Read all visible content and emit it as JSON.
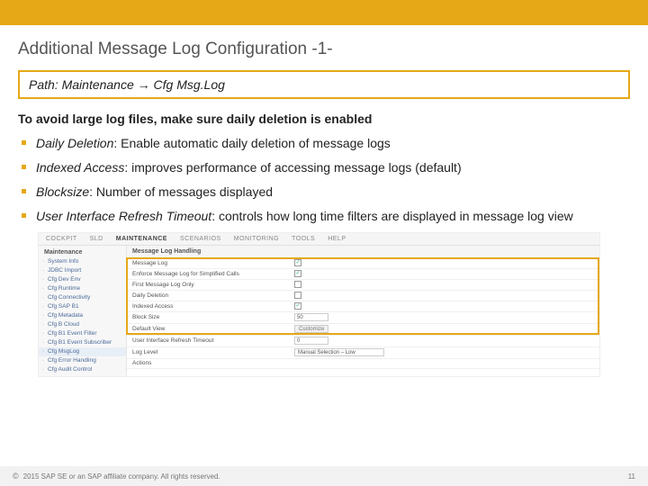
{
  "topbar_color": "#e6a817",
  "title": "Additional Message Log Configuration -1-",
  "path_box": {
    "label": "Path:",
    "value": "Maintenance → Cfg Msg.Log"
  },
  "intro": "To avoid large log files, make sure daily deletion is enabled",
  "bullets": [
    {
      "em": "Daily Deletion",
      "rest": ": Enable automatic daily deletion of message logs"
    },
    {
      "em": "Indexed Access",
      "rest": ": improves performance of accessing message logs (default)"
    },
    {
      "em": "Blocksize",
      "rest": ": Number of messages displayed"
    },
    {
      "em": "User Interface Refresh Timeout",
      "rest": ": controls how long time filters are displayed in message log view"
    }
  ],
  "screenshot": {
    "topnav": [
      "COCKPIT",
      "SLD",
      "MAINTENANCE",
      "SCENARIOS",
      "MONITORING",
      "TOOLS",
      "HELP"
    ],
    "topnav_active": "MAINTENANCE",
    "sidebar_header": "Maintenance",
    "sidebar_items": [
      "System Info",
      "JDBC Import",
      "Cfg Dev Env",
      "Cfg Runtime",
      "Cfg Connectivity",
      "Cfg SAP B1",
      "Cfg Metadata",
      "Cfg B Cloud",
      "Cfg B1 Event Filter",
      "Cfg B1 Event Subscriber",
      "Cfg MsgLog",
      "Cfg Error Handling",
      "Cfg Audit Control"
    ],
    "sidebar_selected": "Cfg MsgLog",
    "main_tab": "Message Log Handling",
    "rows": [
      {
        "label": "Message Log",
        "type": "checkbox",
        "checked": true
      },
      {
        "label": "Enforce Message Log for Simplified Calls",
        "type": "checkbox",
        "checked": true
      },
      {
        "label": "First Message Log Only",
        "type": "checkbox",
        "checked": false
      },
      {
        "label": "Daily Deletion",
        "type": "checkbox",
        "checked": false
      },
      {
        "label": "Indexed Access",
        "type": "checkbox",
        "checked": true
      },
      {
        "label": "Block Size",
        "type": "input",
        "value": "50"
      },
      {
        "label": "Default View",
        "type": "button",
        "value": "Customize"
      },
      {
        "label": "User Interface Refresh Timeout",
        "type": "input",
        "value": "0"
      },
      {
        "label": "Log Level",
        "type": "select",
        "value": "Manual Selection – Low"
      },
      {
        "label": "Actions",
        "type": "blank",
        "value": ""
      }
    ]
  },
  "footer": {
    "copyright": "© 2015 SAP SE or an SAP affiliate company. All rights reserved.",
    "page": "11"
  }
}
